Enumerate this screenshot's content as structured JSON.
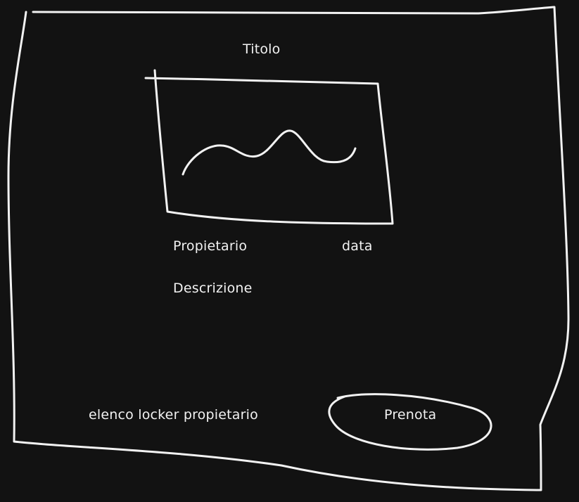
{
  "page": {
    "title": "Titolo",
    "owner_label": "Propietario",
    "date_label": "data",
    "description_label": "Descrizione",
    "locker_list_link": "elenco locker propietario",
    "book_button_label": "Prenota"
  },
  "icons": {
    "image_placeholder": "chart-line-icon"
  },
  "colors": {
    "background": "#121212",
    "stroke": "#f2f2f2"
  }
}
